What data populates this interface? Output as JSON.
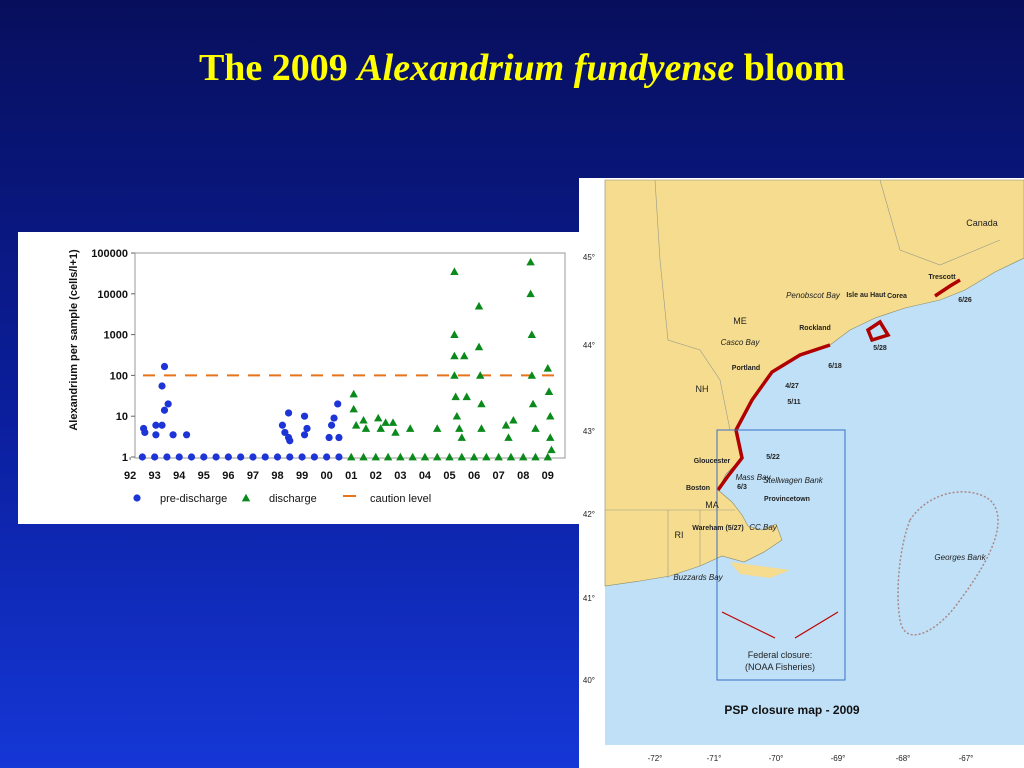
{
  "title_prefix": "The 2009",
  "title_italic": "Alexandrium fundyense",
  "title_suffix": "bloom",
  "chart_data": {
    "type": "scatter",
    "y_label": "Alexandrium per sample (cells/l+1)",
    "log_y": true,
    "xlim": [
      1992.2,
      2009.7
    ],
    "ylim": [
      1,
      100000
    ],
    "xticks": [
      {
        "value": 1992,
        "label": "92"
      },
      {
        "value": 1993,
        "label": "93"
      },
      {
        "value": 1994,
        "label": "94"
      },
      {
        "value": 1995,
        "label": "95"
      },
      {
        "value": 1996,
        "label": "96"
      },
      {
        "value": 1997,
        "label": "97"
      },
      {
        "value": 1998,
        "label": "98"
      },
      {
        "value": 1999,
        "label": "99"
      },
      {
        "value": 2000,
        "label": "00"
      },
      {
        "value": 2001,
        "label": "01"
      },
      {
        "value": 2002,
        "label": "02"
      },
      {
        "value": 2003,
        "label": "03"
      },
      {
        "value": 2004,
        "label": "04"
      },
      {
        "value": 2005,
        "label": "05"
      },
      {
        "value": 2006,
        "label": "06"
      },
      {
        "value": 2007,
        "label": "07"
      },
      {
        "value": 2008,
        "label": "08"
      },
      {
        "value": 2009,
        "label": "09"
      }
    ],
    "yticks": [
      1,
      10,
      100,
      1000,
      10000,
      100000
    ],
    "series": [
      {
        "name": "pre-discharge",
        "color": "#1d34d6",
        "marker": "circle",
        "x": [
          1992.5,
          1993.0,
          1993.5,
          1994.0,
          1994.5,
          1995.0,
          1995.5,
          1996.0,
          1996.5,
          1997.0,
          1997.5,
          1998.0,
          1998.5,
          1999.0,
          1999.5,
          2000.0,
          2000.5,
          1992.55,
          1992.6,
          1993.05,
          1993.05,
          1993.3,
          1993.4,
          1993.4,
          1993.55,
          1993.3,
          1993.75,
          1994.3,
          1998.2,
          1998.3,
          1998.45,
          1998.45,
          1998.5,
          1999.1,
          1999.2,
          1999.1,
          2000.1,
          2000.2,
          2000.3,
          2000.45,
          2000.5
        ],
        "values": [
          1,
          1,
          1,
          1,
          1,
          1,
          1,
          1,
          1,
          1,
          1,
          1,
          1,
          1,
          1,
          1,
          1,
          5,
          4,
          3.5,
          6,
          55,
          165,
          14,
          20,
          6,
          3.5,
          3.5,
          6,
          4,
          12,
          3,
          2.5,
          10,
          5,
          3.5,
          3,
          6,
          9,
          20,
          3
        ]
      },
      {
        "name": "discharge",
        "color": "#0a8a1a",
        "marker": "triangle",
        "x": [
          2001.0,
          2001.5,
          2002.0,
          2002.5,
          2003.0,
          2003.5,
          2004.0,
          2004.5,
          2005.0,
          2005.5,
          2006.0,
          2006.5,
          2007.0,
          2007.5,
          2008.0,
          2008.5,
          2009.0,
          2001.1,
          2001.1,
          2001.2,
          2001.5,
          2001.6,
          2002.1,
          2002.2,
          2002.4,
          2002.7,
          2002.8,
          2003.4,
          2004.5,
          2005.2,
          2005.2,
          2005.2,
          2005.2,
          2005.25,
          2005.3,
          2005.4,
          2005.5,
          2005.6,
          2005.7,
          2006.2,
          2006.2,
          2006.25,
          2006.3,
          2006.3,
          2007.3,
          2007.4,
          2007.6,
          2008.3,
          2008.3,
          2008.35,
          2008.35,
          2008.4,
          2008.5,
          2009.0,
          2009.05,
          2009.1,
          2009.1,
          2009.15
        ],
        "values": [
          1,
          1,
          1,
          1,
          1,
          1,
          1,
          1,
          1,
          1,
          1,
          1,
          1,
          1,
          1,
          1,
          1,
          35,
          15,
          6,
          8,
          5,
          9,
          5,
          7,
          7,
          4,
          5,
          5,
          35000,
          1000,
          300,
          100,
          30,
          10,
          5,
          3,
          300,
          30,
          5000,
          500,
          100,
          20,
          5,
          6,
          3,
          8,
          60000,
          10000,
          1000,
          100,
          20,
          5,
          150,
          40,
          10,
          3,
          1.5
        ]
      }
    ],
    "reference_lines": [
      {
        "name": "caution level",
        "value": 100,
        "color": "#e8741a"
      }
    ]
  },
  "map": {
    "title": "PSP closure map - 2009",
    "lat_labels": [
      "45°",
      "44°",
      "43°",
      "42°",
      "41°",
      "40°"
    ],
    "lon_labels": [
      "-72°",
      "-71°",
      "-70°",
      "-69°",
      "-68°",
      "-67°"
    ],
    "places": [
      "Canada",
      "ME",
      "NH",
      "MA",
      "RI",
      "Portland",
      "Rockland",
      "Gloucester",
      "Boston",
      "Provincetown",
      "Trescott",
      "Corea",
      "Isle au Haut",
      "Wareham (5/27)"
    ],
    "waters": [
      "Penobscot Bay",
      "Casco Bay",
      "Mass Bay",
      "Stellwagen Bank",
      "CC Bay",
      "Buzzards Bay",
      "Georges Bank"
    ],
    "dates": [
      "6/26",
      "5/28",
      "6/18",
      "4/27",
      "5/11",
      "5/22",
      "6/3"
    ],
    "federal_closure": [
      "Federal closure:",
      "(NOAA Fisheries)"
    ]
  }
}
